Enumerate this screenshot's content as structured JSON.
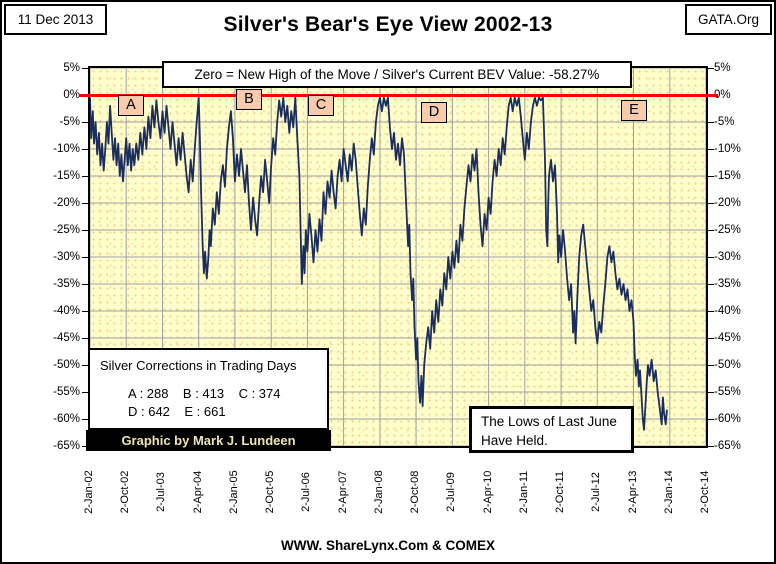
{
  "page": {
    "date_stamp": "11 Dec 2013",
    "org": "GATA.Org",
    "title": "Silver's Bear's Eye View 2002-13",
    "footer": "WWW. ShareLynx.Com & COMEX"
  },
  "subtitle_box": "Zero = New High of the Move / Silver's Current BEV Value: -58.27%",
  "corrections_box": {
    "title": "Silver Corrections in Trading Days",
    "row1": "A : 288    B : 413    C : 374",
    "row2": "D : 642    E : 661"
  },
  "credit_bar": "Graphic by Mark J. Lundeen",
  "lows_box": {
    "line1": "The Lows of Last June",
    "line2": "Have Held."
  },
  "chart_data": {
    "type": "line",
    "title": "Silver's Bear's Eye View 2002-13",
    "subtitle": "Zero = New High of the Move / Silver's Current BEV Value: -58.27%",
    "series_name": "Silver BEV (% below high of the move)",
    "current_bev_value_pct": -58.27,
    "zero_line_value": 0,
    "ylim": [
      -65,
      5
    ],
    "y_tick_labels": [
      "5%",
      "0%",
      "-5%",
      "-10%",
      "-15%",
      "-20%",
      "-25%",
      "-30%",
      "-35%",
      "-40%",
      "-45%",
      "-50%",
      "-55%",
      "-60%",
      "-65%"
    ],
    "x_tick_labels": [
      "2-Jan-02",
      "2-Oct-02",
      "2-Jul-03",
      "2-Apr-04",
      "2-Jan-05",
      "2-Oct-05",
      "2-Jul-06",
      "2-Apr-07",
      "2-Jan-08",
      "2-Oct-08",
      "2-Jul-09",
      "2-Apr-10",
      "2-Jan-11",
      "2-Oct-11",
      "2-Jul-12",
      "2-Apr-13",
      "2-Jan-14",
      "2-Oct-14"
    ],
    "x_axis_months_per_tick": 9,
    "x_total_months": 153,
    "grid": true,
    "legend": "none",
    "colors": {
      "line": "#1b2d5c",
      "zero_line": "#ff0000",
      "plot_bg": "#ffffcc",
      "grid": "#9f9fa6",
      "annotation_fill": "#f8cbad"
    },
    "annotations": [
      {
        "label": "A",
        "month": 10.2,
        "value": -2.1
      },
      {
        "label": "B",
        "month": 39.6,
        "value": -1.0
      },
      {
        "label": "C",
        "month": 57.4,
        "value": -2.1
      },
      {
        "label": "D",
        "month": 85.4,
        "value": -3.4
      },
      {
        "label": "E",
        "month": 135.1,
        "value": -3.0
      }
    ],
    "points_month_value": [
      [
        0,
        -0.5
      ],
      [
        0.3,
        -8
      ],
      [
        0.7,
        -3
      ],
      [
        1,
        -9
      ],
      [
        1.4,
        -5
      ],
      [
        1.8,
        -11
      ],
      [
        2.2,
        -7
      ],
      [
        2.6,
        -13
      ],
      [
        3,
        -9
      ],
      [
        3.4,
        -14
      ],
      [
        3.8,
        -10
      ],
      [
        4.2,
        -5
      ],
      [
        4.6,
        -9
      ],
      [
        5,
        -2
      ],
      [
        5.4,
        -7
      ],
      [
        5.8,
        -12
      ],
      [
        6.2,
        -8
      ],
      [
        6.6,
        -13
      ],
      [
        7,
        -9
      ],
      [
        7.4,
        -15
      ],
      [
        7.8,
        -11
      ],
      [
        8.2,
        -16
      ],
      [
        8.6,
        -12
      ],
      [
        9,
        -8
      ],
      [
        9.4,
        -13
      ],
      [
        9.8,
        -9
      ],
      [
        10.2,
        -14
      ],
      [
        10.6,
        -10
      ],
      [
        11,
        -13
      ],
      [
        11.5,
        -9
      ],
      [
        12,
        -12
      ],
      [
        12.5,
        -7
      ],
      [
        13,
        -11
      ],
      [
        13.5,
        -6
      ],
      [
        14,
        -10
      ],
      [
        14.5,
        -4
      ],
      [
        15,
        -8
      ],
      [
        15.5,
        -2
      ],
      [
        16,
        -6
      ],
      [
        16.5,
        -1
      ],
      [
        17,
        -5
      ],
      [
        17.5,
        -8
      ],
      [
        18,
        -3
      ],
      [
        18.5,
        -7
      ],
      [
        19,
        -2
      ],
      [
        19.5,
        -6
      ],
      [
        20,
        -10
      ],
      [
        20.5,
        -5
      ],
      [
        21,
        -9
      ],
      [
        21.5,
        -13
      ],
      [
        22,
        -8
      ],
      [
        22.5,
        -12
      ],
      [
        23,
        -7
      ],
      [
        23.5,
        -11
      ],
      [
        24,
        -15
      ],
      [
        24.5,
        -18
      ],
      [
        25,
        -12
      ],
      [
        25.5,
        -16
      ],
      [
        26,
        -10
      ],
      [
        26.5,
        -5
      ],
      [
        27,
        -0.5
      ],
      [
        27.3,
        -8
      ],
      [
        27.6,
        -18
      ],
      [
        28,
        -28
      ],
      [
        28.3,
        -33
      ],
      [
        28.6,
        -29
      ],
      [
        29,
        -34
      ],
      [
        29.4,
        -30
      ],
      [
        29.7,
        -25
      ],
      [
        30,
        -28
      ],
      [
        30.5,
        -21
      ],
      [
        31,
        -24
      ],
      [
        31.5,
        -18
      ],
      [
        32,
        -22
      ],
      [
        32.5,
        -16
      ],
      [
        33,
        -13
      ],
      [
        33.5,
        -17
      ],
      [
        34,
        -10
      ],
      [
        34.5,
        -6
      ],
      [
        35,
        -3
      ],
      [
        35.5,
        -8
      ],
      [
        36,
        -16
      ],
      [
        36.5,
        -11
      ],
      [
        37,
        -15
      ],
      [
        37.5,
        -10
      ],
      [
        38,
        -14
      ],
      [
        38.5,
        -18
      ],
      [
        39,
        -13
      ],
      [
        39.5,
        -20
      ],
      [
        40,
        -25
      ],
      [
        40.5,
        -19
      ],
      [
        41,
        -23
      ],
      [
        41.5,
        -26
      ],
      [
        42,
        -20
      ],
      [
        42.5,
        -15
      ],
      [
        43,
        -18
      ],
      [
        43.5,
        -12
      ],
      [
        44,
        -16
      ],
      [
        44.5,
        -20
      ],
      [
        45,
        -13
      ],
      [
        45.5,
        -8
      ],
      [
        46,
        -11
      ],
      [
        46.5,
        -5
      ],
      [
        47,
        -1
      ],
      [
        47.5,
        -4
      ],
      [
        48,
        -0.5
      ],
      [
        48.5,
        -5
      ],
      [
        49,
        -2
      ],
      [
        49.5,
        -7
      ],
      [
        50,
        -3
      ],
      [
        50.5,
        -6
      ],
      [
        51,
        -0.5
      ],
      [
        51.5,
        -8
      ],
      [
        52,
        -15
      ],
      [
        52.3,
        -25
      ],
      [
        52.6,
        -35
      ],
      [
        53,
        -28
      ],
      [
        53.3,
        -33
      ],
      [
        53.6,
        -25
      ],
      [
        54,
        -29
      ],
      [
        54.5,
        -22
      ],
      [
        55,
        -26
      ],
      [
        55.5,
        -31
      ],
      [
        56,
        -25
      ],
      [
        56.5,
        -29
      ],
      [
        57,
        -23
      ],
      [
        57.5,
        -27
      ],
      [
        58,
        -18
      ],
      [
        58.5,
        -22
      ],
      [
        59,
        -16
      ],
      [
        59.5,
        -19
      ],
      [
        60,
        -14
      ],
      [
        60.5,
        -18
      ],
      [
        61,
        -21
      ],
      [
        61.5,
        -15
      ],
      [
        62,
        -12
      ],
      [
        62.5,
        -16
      ],
      [
        63,
        -10
      ],
      [
        63.5,
        -13
      ],
      [
        64,
        -16
      ],
      [
        64.5,
        -11
      ],
      [
        65,
        -14
      ],
      [
        65.5,
        -9
      ],
      [
        66,
        -12
      ],
      [
        66.5,
        -17
      ],
      [
        67,
        -22
      ],
      [
        67.5,
        -26
      ],
      [
        68,
        -21
      ],
      [
        68.5,
        -24
      ],
      [
        69,
        -17
      ],
      [
        69.5,
        -12
      ],
      [
        70,
        -8
      ],
      [
        70.5,
        -11
      ],
      [
        71,
        -5
      ],
      [
        71.5,
        -2
      ],
      [
        72,
        -0.5
      ],
      [
        72.5,
        -3
      ],
      [
        73,
        -0.5
      ],
      [
        73.5,
        -2
      ],
      [
        74,
        -0.5
      ],
      [
        74.5,
        -6
      ],
      [
        75,
        -10
      ],
      [
        75.5,
        -7
      ],
      [
        76,
        -12
      ],
      [
        76.5,
        -9
      ],
      [
        77,
        -13
      ],
      [
        77.5,
        -8
      ],
      [
        78,
        -11
      ],
      [
        78.5,
        -20
      ],
      [
        79,
        -28
      ],
      [
        79.3,
        -24
      ],
      [
        79.6,
        -33
      ],
      [
        80,
        -38
      ],
      [
        80.3,
        -34
      ],
      [
        80.6,
        -43
      ],
      [
        81,
        -49
      ],
      [
        81.3,
        -45
      ],
      [
        81.6,
        -53
      ],
      [
        82,
        -57
      ],
      [
        82.3,
        -52
      ],
      [
        82.6,
        -57.6
      ],
      [
        83,
        -50
      ],
      [
        83.5,
        -46
      ],
      [
        84,
        -43
      ],
      [
        84.5,
        -47
      ],
      [
        85,
        -40
      ],
      [
        85.5,
        -44
      ],
      [
        86,
        -38
      ],
      [
        86.5,
        -42
      ],
      [
        87,
        -36
      ],
      [
        87.5,
        -39
      ],
      [
        88,
        -33
      ],
      [
        88.5,
        -36
      ],
      [
        89,
        -30
      ],
      [
        89.5,
        -34
      ],
      [
        90,
        -29
      ],
      [
        90.5,
        -32
      ],
      [
        91,
        -27
      ],
      [
        91.5,
        -31
      ],
      [
        92,
        -24
      ],
      [
        92.5,
        -27
      ],
      [
        93,
        -21
      ],
      [
        93.5,
        -17
      ],
      [
        94,
        -13
      ],
      [
        94.5,
        -16
      ],
      [
        95,
        -11
      ],
      [
        95.5,
        -14
      ],
      [
        96,
        -10
      ],
      [
        96.5,
        -18
      ],
      [
        97,
        -24
      ],
      [
        97.5,
        -28
      ],
      [
        98,
        -22
      ],
      [
        98.5,
        -25
      ],
      [
        99,
        -19
      ],
      [
        99.5,
        -22
      ],
      [
        100,
        -16
      ],
      [
        100.5,
        -12
      ],
      [
        101,
        -15
      ],
      [
        101.5,
        -10
      ],
      [
        102,
        -13
      ],
      [
        102.5,
        -8
      ],
      [
        103,
        -11
      ],
      [
        103.5,
        -6
      ],
      [
        104,
        -2
      ],
      [
        104.5,
        -0.5
      ],
      [
        105,
        -3
      ],
      [
        105.5,
        -0.5
      ],
      [
        106,
        -2
      ],
      [
        106.5,
        -0.5
      ],
      [
        107,
        -4
      ],
      [
        107.5,
        -8
      ],
      [
        108,
        -12
      ],
      [
        108.5,
        -7
      ],
      [
        109,
        -10
      ],
      [
        109.5,
        -5
      ],
      [
        110,
        -2
      ],
      [
        110.5,
        -0.5
      ],
      [
        111,
        -2
      ],
      [
        111.5,
        -0.5
      ],
      [
        112,
        -1
      ],
      [
        112.5,
        -0.5
      ],
      [
        113,
        -12
      ],
      [
        113.3,
        -25
      ],
      [
        113.6,
        -28
      ],
      [
        113.8,
        -20
      ],
      [
        114,
        -15
      ],
      [
        114.5,
        -12
      ],
      [
        115,
        -16
      ],
      [
        115.5,
        -13
      ],
      [
        116,
        -22
      ],
      [
        116.3,
        -31
      ],
      [
        116.6,
        -26
      ],
      [
        117,
        -30
      ],
      [
        117.5,
        -25
      ],
      [
        118,
        -29
      ],
      [
        118.5,
        -34
      ],
      [
        119,
        -38
      ],
      [
        119.5,
        -35
      ],
      [
        120,
        -44
      ],
      [
        120.3,
        -40
      ],
      [
        120.6,
        -46
      ],
      [
        121,
        -38
      ],
      [
        121.5,
        -30
      ],
      [
        122,
        -26
      ],
      [
        122.5,
        -24
      ],
      [
        123,
        -28
      ],
      [
        123.5,
        -32
      ],
      [
        124,
        -36
      ],
      [
        124.5,
        -40
      ],
      [
        125,
        -38
      ],
      [
        125.5,
        -43
      ],
      [
        126,
        -46
      ],
      [
        126.5,
        -42
      ],
      [
        127,
        -44
      ],
      [
        127.5,
        -39
      ],
      [
        128,
        -35
      ],
      [
        128.5,
        -30
      ],
      [
        129,
        -28
      ],
      [
        129.5,
        -31
      ],
      [
        130,
        -29
      ],
      [
        130.5,
        -33
      ],
      [
        131,
        -36
      ],
      [
        131.5,
        -34
      ],
      [
        132,
        -37
      ],
      [
        132.5,
        -35
      ],
      [
        133,
        -38
      ],
      [
        133.5,
        -36
      ],
      [
        134,
        -40
      ],
      [
        134.5,
        -38
      ],
      [
        135,
        -42
      ],
      [
        135.3,
        -48
      ],
      [
        135.6,
        -52
      ],
      [
        136,
        -49
      ],
      [
        136.3,
        -54
      ],
      [
        136.6,
        -51
      ],
      [
        137,
        -56
      ],
      [
        137.3,
        -60
      ],
      [
        137.6,
        -62
      ],
      [
        138,
        -57
      ],
      [
        138.3,
        -53
      ],
      [
        138.6,
        -50
      ],
      [
        139,
        -52
      ],
      [
        139.5,
        -49
      ],
      [
        140,
        -53
      ],
      [
        140.5,
        -51
      ],
      [
        141,
        -55
      ],
      [
        141.5,
        -58
      ],
      [
        142,
        -61
      ],
      [
        142.3,
        -56
      ],
      [
        142.6,
        -59
      ],
      [
        143,
        -61
      ],
      [
        143.3,
        -58.27
      ]
    ]
  }
}
